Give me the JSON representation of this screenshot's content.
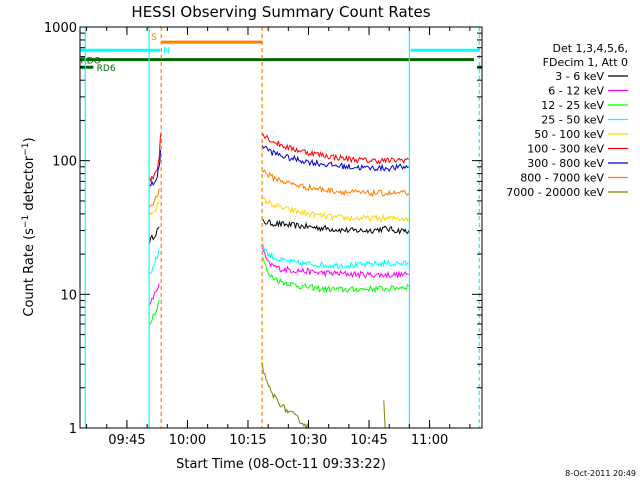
{
  "chart_data": {
    "type": "line",
    "title": "HESSI Observing Summary Count Rates",
    "xlabel": "Start Time (08-Oct-11 09:33:22)",
    "ylabel": "Count Rate (s-1 detector-1)",
    "ylabel_parts": {
      "main": "Count Rate (s",
      "exp1": "−1",
      "mid": " detector",
      "exp2": "−1",
      "end": ")"
    },
    "yscale": "log",
    "xlim": [
      "09:33:22",
      "11:13:00"
    ],
    "ylim": [
      1,
      1000
    ],
    "x_ticks": [
      "09:45",
      "10:00",
      "10:15",
      "10:30",
      "10:45",
      "11:00"
    ],
    "y_ticks": [
      {
        "value": 1,
        "label": "1"
      },
      {
        "value": 10,
        "label": "10"
      },
      {
        "value": 100,
        "label": "100"
      },
      {
        "value": 1000,
        "label": "1000"
      }
    ],
    "timestamp": "8-Oct-2011 20:49",
    "legend": {
      "placement": "right",
      "header": [
        "Det 1,3,4,5,6,",
        "FDecim 1, Att 0"
      ]
    },
    "flags": [
      {
        "name": "RDO",
        "color": "#006400",
        "label_time": "09:33:30",
        "value": 570
      },
      {
        "name": "RD6",
        "color": "#006400",
        "label_time": "09:37:30",
        "value": 500
      },
      {
        "name": "S",
        "color": "#ff7f00",
        "label_time": "09:51:00",
        "value": 860
      },
      {
        "name": "N",
        "color": "#00ffff",
        "label_time": "09:54:00",
        "value": 680
      }
    ],
    "flag_bars": [
      {
        "flag": "RDO",
        "color": "#006400",
        "segments": [
          [
            "09:33:22",
            "11:11:00"
          ]
        ],
        "value": 570
      },
      {
        "flag": "RD6",
        "color": "#006400",
        "segments": [
          [
            "09:33:22",
            "09:36:40"
          ],
          [
            "11:11:50",
            "11:13:00"
          ]
        ],
        "value": 500
      },
      {
        "flag": "S",
        "color": "#ff7f00",
        "segments": [
          [
            "09:53:30",
            "10:18:30"
          ]
        ],
        "value": 770
      },
      {
        "flag": "N",
        "color": "#00ffff",
        "segments": [
          [
            "09:33:22",
            "09:53:10"
          ],
          [
            "10:55:20",
            "11:12:20"
          ]
        ],
        "value": 670
      }
    ],
    "markers": [
      {
        "time": "09:34:40",
        "color": "#00ffff",
        "style": "solid"
      },
      {
        "time": "09:50:30",
        "color": "#00ffff",
        "style": "solid"
      },
      {
        "time": "09:53:30",
        "color": "#ff7f00",
        "style": "dashed"
      },
      {
        "time": "10:18:30",
        "color": "#ff7f00",
        "style": "dashed"
      },
      {
        "time": "10:55:00",
        "color": "#00ffff",
        "style": "solid"
      },
      {
        "time": "11:12:20",
        "color": "#00ffff",
        "style": "dashed"
      }
    ],
    "series": [
      {
        "name": "3 - 6 keV",
        "color": "#000000",
        "segments": [
          [
            [
              "09:50:34",
              25
            ],
            [
              "09:51:30",
              27
            ],
            [
              "09:52:30",
              30
            ],
            [
              "09:53:00",
              32
            ]
          ],
          [
            [
              "10:18:30",
              35
            ],
            [
              "10:21:00",
              34
            ],
            [
              "10:25:00",
              33
            ],
            [
              "10:30:00",
              32
            ],
            [
              "10:35:00",
              31
            ],
            [
              "10:40:00",
              30
            ],
            [
              "10:45:00",
              30
            ],
            [
              "10:49:00",
              31
            ],
            [
              "10:52:00",
              30
            ],
            [
              "10:54:50",
              30
            ]
          ]
        ]
      },
      {
        "name": "6 - 12 keV",
        "color": "#ff00ff",
        "segments": [
          [
            [
              "09:50:34",
              8
            ],
            [
              "09:51:30",
              9.5
            ],
            [
              "09:52:30",
              11
            ],
            [
              "09:53:00",
              12
            ]
          ],
          [
            [
              "10:18:30",
              22
            ],
            [
              "10:20:00",
              17
            ],
            [
              "10:23:00",
              15.5
            ],
            [
              "10:28:00",
              15
            ],
            [
              "10:33:00",
              14.5
            ],
            [
              "10:40:00",
              14.2
            ],
            [
              "10:45:00",
              14
            ],
            [
              "10:50:00",
              14
            ],
            [
              "10:54:50",
              14
            ]
          ]
        ]
      },
      {
        "name": "12 - 25 keV",
        "color": "#00ff00",
        "segments": [
          [
            [
              "09:50:34",
              6
            ],
            [
              "09:51:30",
              7
            ],
            [
              "09:52:30",
              8
            ],
            [
              "09:53:00",
              9
            ]
          ],
          [
            [
              "10:18:30",
              20
            ],
            [
              "10:20:00",
              14
            ],
            [
              "10:23:00",
              12.5
            ],
            [
              "10:28:00",
              11.5
            ],
            [
              "10:33:00",
              11
            ],
            [
              "10:40:00",
              10.8
            ],
            [
              "10:45:00",
              11
            ],
            [
              "10:50:00",
              11
            ],
            [
              "10:54:50",
              11.5
            ]
          ]
        ]
      },
      {
        "name": "25 - 50 keV",
        "color": "#00ffff",
        "segments": [
          [
            [
              "09:50:34",
              14
            ],
            [
              "09:51:30",
              16
            ],
            [
              "09:52:30",
              19
            ],
            [
              "09:53:00",
              22
            ]
          ],
          [
            [
              "10:18:30",
              24
            ],
            [
              "10:20:00",
              20
            ],
            [
              "10:23:00",
              18
            ],
            [
              "10:28:00",
              17
            ],
            [
              "10:35:00",
              16.5
            ],
            [
              "10:42:00",
              16.5
            ],
            [
              "10:48:00",
              17
            ],
            [
              "10:54:50",
              17
            ]
          ]
        ]
      },
      {
        "name": "50 - 100 keV",
        "color": "#ffd700",
        "segments": [
          [
            [
              "09:50:34",
              40
            ],
            [
              "09:51:30",
              42
            ],
            [
              "09:52:30",
              46
            ],
            [
              "09:53:00",
              48
            ]
          ],
          [
            [
              "10:18:30",
              52
            ],
            [
              "10:21:00",
              47
            ],
            [
              "10:25:00",
              43
            ],
            [
              "10:30:00",
              40
            ],
            [
              "10:35:00",
              38
            ],
            [
              "10:40:00",
              37
            ],
            [
              "10:45:00",
              37
            ],
            [
              "10:50:00",
              37
            ],
            [
              "10:54:50",
              37
            ]
          ]
        ]
      },
      {
        "name": "100 - 300 keV",
        "color": "#ff0000",
        "segments": [
          [
            [
              "09:50:34",
              72
            ],
            [
              "09:51:30",
              75
            ],
            [
              "09:52:30",
              88
            ],
            [
              "09:53:00",
              110
            ],
            [
              "09:53:20",
              160
            ]
          ],
          [
            [
              "10:18:30",
              160
            ],
            [
              "10:21:00",
              140
            ],
            [
              "10:25:00",
              125
            ],
            [
              "10:30:00",
              115
            ],
            [
              "10:35:00",
              108
            ],
            [
              "10:40:00",
              103
            ],
            [
              "10:45:00",
              100
            ],
            [
              "10:50:00",
              100
            ],
            [
              "10:54:50",
              102
            ]
          ]
        ]
      },
      {
        "name": "300 - 800 keV",
        "color": "#0000cd",
        "segments": [
          [
            [
              "09:50:34",
              65
            ],
            [
              "09:51:30",
              68
            ],
            [
              "09:52:30",
              75
            ],
            [
              "09:53:00",
              90
            ],
            [
              "09:53:20",
              120
            ]
          ],
          [
            [
              "10:18:30",
              130
            ],
            [
              "10:21:00",
              115
            ],
            [
              "10:25:00",
              105
            ],
            [
              "10:30:00",
              98
            ],
            [
              "10:35:00",
              93
            ],
            [
              "10:40:00",
              90
            ],
            [
              "10:45:00",
              88
            ],
            [
              "10:50:00",
              88
            ],
            [
              "10:54:50",
              90
            ]
          ]
        ]
      },
      {
        "name": "800 - 7000 keV",
        "color": "#ff7f00",
        "segments": [
          [
            [
              "09:50:34",
              45
            ],
            [
              "09:51:30",
              48
            ],
            [
              "09:52:30",
              55
            ],
            [
              "09:53:00",
              62
            ]
          ],
          [
            [
              "10:18:30",
              85
            ],
            [
              "10:21:00",
              75
            ],
            [
              "10:25:00",
              68
            ],
            [
              "10:30:00",
              63
            ],
            [
              "10:35:00",
              60
            ],
            [
              "10:40:00",
              58
            ],
            [
              "10:45:00",
              57
            ],
            [
              "10:50:00",
              57
            ],
            [
              "10:54:50",
              57
            ]
          ]
        ]
      },
      {
        "name": "7000 - 20000 keV",
        "color": "#808000",
        "segments": [
          [
            [
              "10:18:30",
              3
            ],
            [
              "10:19:30",
              2.2
            ],
            [
              "10:21:00",
              1.8
            ],
            [
              "10:24:00",
              1.4
            ],
            [
              "10:27:00",
              1.2
            ],
            [
              "10:30:00",
              1.0
            ]
          ],
          [
            [
              "10:48:40",
              1.6
            ],
            [
              "10:49:00",
              1.0
            ]
          ]
        ]
      }
    ]
  }
}
